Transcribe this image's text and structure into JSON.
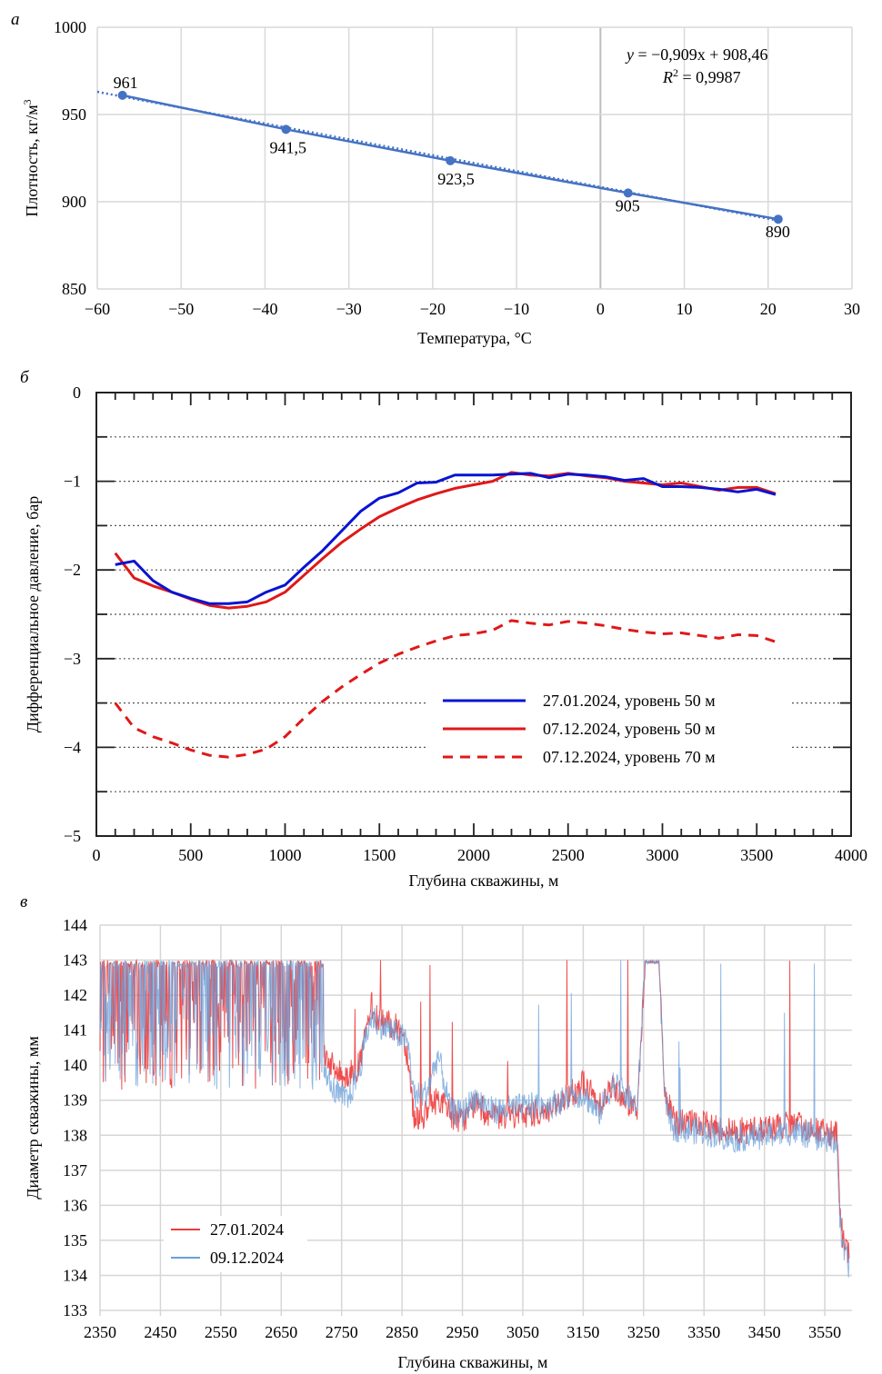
{
  "figure": {
    "panels": [
      "а",
      "б",
      "в"
    ]
  },
  "chart_data": [
    {
      "id": "a",
      "type": "scatter",
      "panel_label": "а",
      "xlabel": "Температура, °C",
      "ylabel": "Плотность, кг/м³",
      "ylabel_main": "Плотность, кг/м",
      "ylabel_sup": "3",
      "xlim": [
        -60,
        30
      ],
      "ylim": [
        850,
        1000
      ],
      "xticks": [
        -60,
        -50,
        -40,
        -30,
        -20,
        -10,
        0,
        10,
        20,
        30
      ],
      "xtick_labels": [
        "−60",
        "−50",
        "−40",
        "−30",
        "−20",
        "−10",
        "0",
        "10",
        "20",
        "30"
      ],
      "yticks": [
        850,
        900,
        950,
        1000
      ],
      "ytick_labels": [
        "850",
        "900",
        "950",
        "1000"
      ],
      "grid": true,
      "color": "#4472c4",
      "points": [
        {
          "x": -57,
          "y": 961,
          "label": "961"
        },
        {
          "x": -37.5,
          "y": 941.5,
          "label": "941,5"
        },
        {
          "x": -17.9,
          "y": 923.5,
          "label": "923,5"
        },
        {
          "x": 3.3,
          "y": 905,
          "label": "905"
        },
        {
          "x": 21.2,
          "y": 890,
          "label": "890"
        }
      ],
      "trendline": {
        "slope": -0.909,
        "intercept": 908.46,
        "x_from": -60,
        "x_to": 21.2,
        "style": "dotted"
      },
      "equation_prefix": "y",
      "equation_body": " = −0,909x + 908,46",
      "r2_prefix": "R",
      "r2_sup": "2",
      "r2_body": " = 0,9987"
    },
    {
      "id": "b",
      "type": "line",
      "panel_label": "б",
      "xlabel": "Глубина скважины, м",
      "ylabel": "Дифференциальное давление, бар",
      "xlim": [
        0,
        4000
      ],
      "ylim": [
        -5,
        0
      ],
      "xticks": [
        0,
        500,
        1000,
        1500,
        2000,
        2500,
        3000,
        3500,
        4000
      ],
      "xtick_labels": [
        "0",
        "500",
        "1000",
        "1500",
        "2000",
        "2500",
        "3000",
        "3500",
        "4000"
      ],
      "yticks": [
        0,
        -1,
        -2,
        -3,
        -4,
        -5
      ],
      "ytick_labels": [
        "0",
        "−1",
        "−2",
        "−3",
        "−4",
        "−5"
      ],
      "grid": "dotted-horizontal",
      "legend_position": "lower-center",
      "series": [
        {
          "name": "27.01.2024, уровень 50 м",
          "color": "#0a14d0",
          "style": "solid",
          "x": [
            100,
            200,
            300,
            400,
            500,
            600,
            700,
            800,
            900,
            1000,
            1100,
            1200,
            1300,
            1400,
            1500,
            1600,
            1700,
            1800,
            1900,
            2000,
            2100,
            2200,
            2300,
            2400,
            2500,
            2600,
            2700,
            2800,
            2900,
            3000,
            3100,
            3200,
            3300,
            3400,
            3500,
            3600
          ],
          "y": [
            -1.94,
            -1.9,
            -2.12,
            -2.25,
            -2.32,
            -2.38,
            -2.38,
            -2.36,
            -2.25,
            -2.17,
            -1.97,
            -1.78,
            -1.56,
            -1.34,
            -1.19,
            -1.13,
            -1.02,
            -1.01,
            -0.93,
            -0.93,
            -0.93,
            -0.92,
            -0.91,
            -0.96,
            -0.92,
            -0.93,
            -0.95,
            -0.99,
            -0.97,
            -1.06,
            -1.06,
            -1.07,
            -1.09,
            -1.12,
            -1.09,
            -1.15
          ]
        },
        {
          "name": "07.12.2024, уровень 50 м",
          "color": "#e01818",
          "style": "solid",
          "x": [
            100,
            200,
            300,
            400,
            500,
            600,
            700,
            800,
            900,
            1000,
            1100,
            1200,
            1300,
            1400,
            1500,
            1600,
            1700,
            1800,
            1900,
            2000,
            2100,
            2200,
            2300,
            2400,
            2500,
            2600,
            2700,
            2800,
            2900,
            3000,
            3100,
            3200,
            3300,
            3400,
            3500,
            3600
          ],
          "y": [
            -1.81,
            -2.09,
            -2.18,
            -2.25,
            -2.33,
            -2.4,
            -2.43,
            -2.41,
            -2.36,
            -2.25,
            -2.06,
            -1.87,
            -1.69,
            -1.54,
            -1.4,
            -1.3,
            -1.21,
            -1.14,
            -1.08,
            -1.04,
            -1.0,
            -0.9,
            -0.93,
            -0.94,
            -0.91,
            -0.94,
            -0.96,
            -1.0,
            -1.02,
            -1.04,
            -1.02,
            -1.06,
            -1.1,
            -1.07,
            -1.07,
            -1.14
          ]
        },
        {
          "name": "07.12.2024, уровень 70 м",
          "color": "#e01818",
          "style": "dashed",
          "x": [
            100,
            200,
            300,
            400,
            500,
            600,
            700,
            800,
            900,
            1000,
            1100,
            1200,
            1300,
            1400,
            1500,
            1600,
            1700,
            1800,
            1900,
            2000,
            2100,
            2200,
            2300,
            2400,
            2500,
            2600,
            2700,
            2800,
            2900,
            3000,
            3100,
            3200,
            3300,
            3400,
            3500,
            3600
          ],
          "y": [
            -3.5,
            -3.78,
            -3.88,
            -3.95,
            -4.03,
            -4.09,
            -4.11,
            -4.08,
            -4.02,
            -3.88,
            -3.67,
            -3.48,
            -3.32,
            -3.18,
            -3.05,
            -2.95,
            -2.87,
            -2.8,
            -2.74,
            -2.72,
            -2.68,
            -2.57,
            -2.6,
            -2.62,
            -2.58,
            -2.6,
            -2.63,
            -2.67,
            -2.7,
            -2.72,
            -2.71,
            -2.74,
            -2.77,
            -2.73,
            -2.74,
            -2.81
          ]
        }
      ]
    },
    {
      "id": "c",
      "type": "line",
      "panel_label": "в",
      "xlabel": "Глубина скважины, м",
      "ylabel": "Диаметр скважины, мм",
      "xlim": [
        2350,
        3595
      ],
      "ylim": [
        133,
        144
      ],
      "xticks": [
        2350,
        2450,
        2550,
        2650,
        2750,
        2850,
        2950,
        3050,
        3150,
        3250,
        3350,
        3450,
        3550
      ],
      "xtick_labels": [
        "2350",
        "2450",
        "2550",
        "2650",
        "2750",
        "2850",
        "2950",
        "3050",
        "3150",
        "3250",
        "3350",
        "3450",
        "3550"
      ],
      "yticks": [
        133,
        134,
        135,
        136,
        137,
        138,
        139,
        140,
        141,
        142,
        143,
        144
      ],
      "ytick_labels": [
        "133",
        "134",
        "135",
        "136",
        "137",
        "138",
        "139",
        "140",
        "141",
        "142",
        "143",
        "144"
      ],
      "grid": true,
      "legend_position": "lower-left",
      "series": [
        {
          "name": "27.01.2024",
          "color": "#ee3b3b",
          "profile": [
            [
              2350,
              141.2
            ],
            [
              2360,
              140.5
            ],
            [
              2380,
              141.5
            ],
            [
              2400,
              140.6
            ],
            [
              2420,
              141.4
            ],
            [
              2450,
              141.0
            ],
            [
              2480,
              141.6
            ],
            [
              2500,
              141.8
            ],
            [
              2550,
              141.6
            ],
            [
              2600,
              141.3
            ],
            [
              2650,
              141.4
            ],
            [
              2690,
              141.5
            ],
            [
              2700,
              141.2
            ],
            [
              2720,
              140.4
            ],
            [
              2740,
              139.8
            ],
            [
              2760,
              139.7
            ],
            [
              2780,
              140.0
            ],
            [
              2790,
              140.9
            ],
            [
              2800,
              141.7
            ],
            [
              2810,
              141.3
            ],
            [
              2850,
              141.0
            ],
            [
              2860,
              140.2
            ],
            [
              2870,
              138.5
            ],
            [
              2890,
              138.6
            ],
            [
              2910,
              139.1
            ],
            [
              2930,
              138.6
            ],
            [
              2950,
              138.4
            ],
            [
              2970,
              138.9
            ],
            [
              3000,
              138.5
            ],
            [
              3050,
              138.6
            ],
            [
              3100,
              138.7
            ],
            [
              3150,
              139.5
            ],
            [
              3175,
              138.9
            ],
            [
              3200,
              139.4
            ],
            [
              3240,
              138.7
            ],
            [
              3252,
              142.9
            ],
            [
              3275,
              142.9
            ],
            [
              3285,
              139.2
            ],
            [
              3300,
              138.4
            ],
            [
              3350,
              138.3
            ],
            [
              3400,
              138.1
            ],
            [
              3450,
              138.2
            ],
            [
              3500,
              138.3
            ],
            [
              3570,
              138.0
            ],
            [
              3575,
              135.8
            ],
            [
              3580,
              135.0
            ],
            [
              3590,
              134.6
            ]
          ]
        },
        {
          "name": "09.12.2024",
          "color": "#6a9fd8",
          "profile": [
            [
              2350,
              142.5
            ],
            [
              2360,
              142.8
            ],
            [
              2380,
              142.2
            ],
            [
              2400,
              141.5
            ],
            [
              2420,
              141.8
            ],
            [
              2450,
              141.4
            ],
            [
              2480,
              142.0
            ],
            [
              2500,
              142.0
            ],
            [
              2550,
              141.8
            ],
            [
              2600,
              141.5
            ],
            [
              2650,
              141.6
            ],
            [
              2690,
              141.8
            ],
            [
              2700,
              141.3
            ],
            [
              2720,
              140.0
            ],
            [
              2740,
              139.2
            ],
            [
              2760,
              139.0
            ],
            [
              2780,
              139.9
            ],
            [
              2790,
              140.8
            ],
            [
              2800,
              141.4
            ],
            [
              2810,
              141.2
            ],
            [
              2850,
              140.8
            ],
            [
              2860,
              140.6
            ],
            [
              2870,
              139.1
            ],
            [
              2890,
              139.2
            ],
            [
              2910,
              140.3
            ],
            [
              2930,
              138.7
            ],
            [
              2950,
              138.6
            ],
            [
              2970,
              139.1
            ],
            [
              3000,
              138.7
            ],
            [
              3050,
              138.8
            ],
            [
              3100,
              138.9
            ],
            [
              3150,
              139.2
            ],
            [
              3175,
              138.6
            ],
            [
              3200,
              139.5
            ],
            [
              3240,
              138.8
            ],
            [
              3252,
              143.0
            ],
            [
              3275,
              143.0
            ],
            [
              3285,
              139.0
            ],
            [
              3300,
              138.2
            ],
            [
              3350,
              138.1
            ],
            [
              3400,
              137.9
            ],
            [
              3450,
              138.0
            ],
            [
              3500,
              138.1
            ],
            [
              3570,
              137.8
            ],
            [
              3575,
              135.5
            ],
            [
              3580,
              134.7
            ],
            [
              3590,
              134.3
            ]
          ]
        }
      ]
    }
  ]
}
